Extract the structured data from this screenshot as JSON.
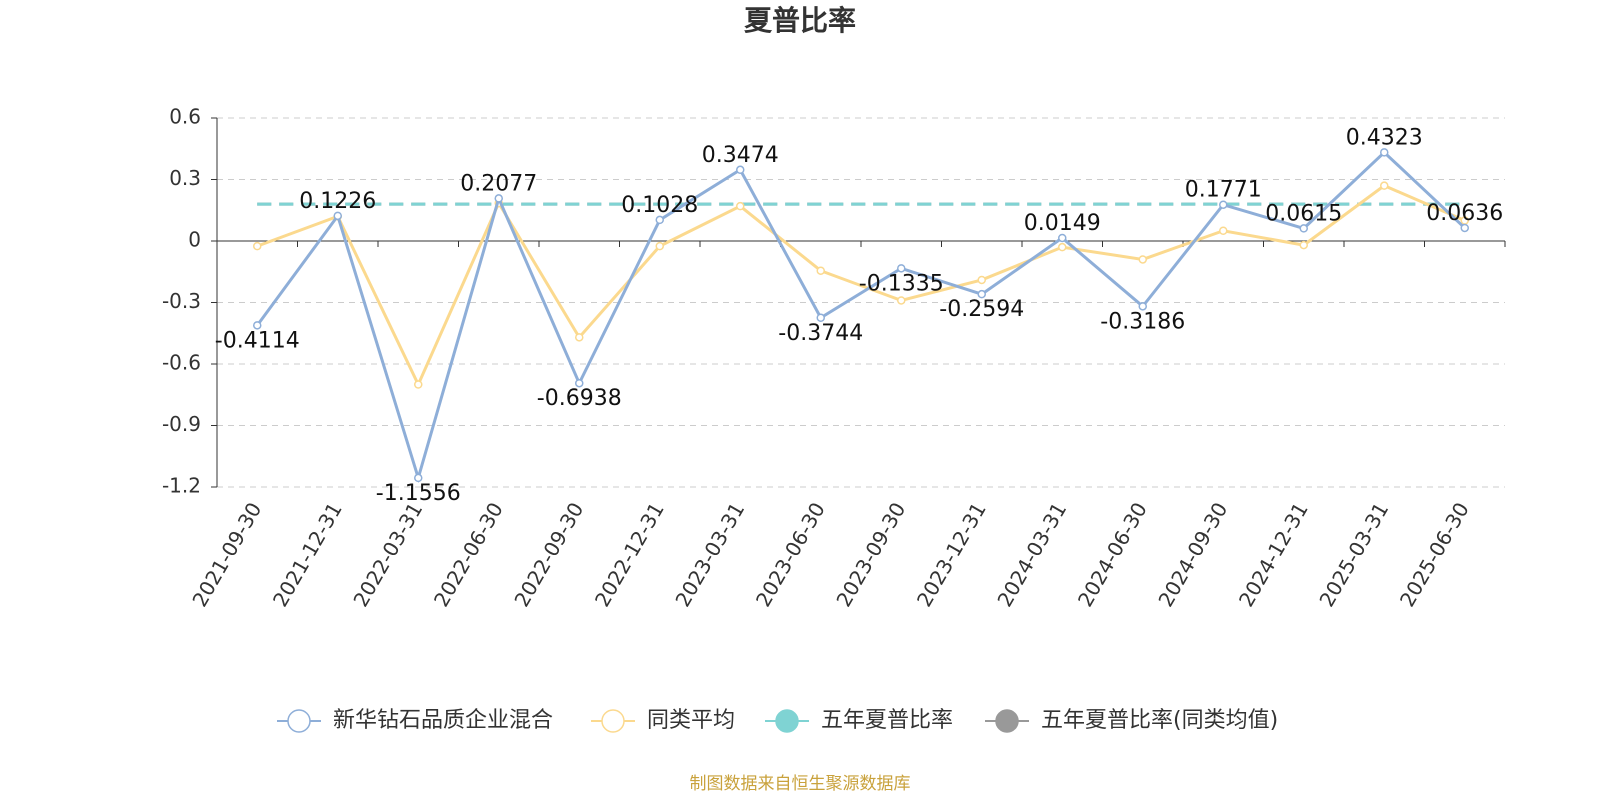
{
  "chart_data": {
    "type": "line",
    "title": "夏普比率",
    "categories": [
      "2021-09-30",
      "2021-12-31",
      "2022-03-31",
      "2022-06-30",
      "2022-09-30",
      "2022-12-31",
      "2023-03-31",
      "2023-06-30",
      "2023-09-30",
      "2023-12-31",
      "2024-03-31",
      "2024-06-30",
      "2024-09-30",
      "2024-12-31",
      "2025-03-31",
      "2025-06-30"
    ],
    "series": [
      {
        "name": "新华钻石品质企业混合",
        "color": "#8eaed8",
        "values": [
          -0.4114,
          0.1226,
          -1.1556,
          0.2077,
          -0.6938,
          0.1028,
          0.3474,
          -0.3744,
          -0.1335,
          -0.2594,
          0.0149,
          -0.3186,
          0.1771,
          0.0615,
          0.4323,
          0.0636
        ],
        "labels": true
      },
      {
        "name": "同类平均",
        "color": "#fbd98e",
        "values": [
          -0.025,
          0.12,
          -0.7,
          0.185,
          -0.47,
          -0.025,
          0.17,
          -0.145,
          -0.29,
          -0.19,
          -0.03,
          -0.09,
          0.05,
          -0.02,
          0.27,
          0.1
        ]
      },
      {
        "name": "五年夏普比率",
        "color": "#7fd3d3",
        "style": "dashed",
        "values": [
          0.18,
          0.18,
          0.18,
          0.18,
          0.18,
          0.18,
          0.18,
          0.18,
          0.18,
          0.18,
          0.18,
          0.18,
          0.18,
          0.18,
          0.18,
          0.18
        ]
      },
      {
        "name": "五年夏普比率(同类均值)",
        "color": "#999999",
        "style": "dashed",
        "values": [
          0.18,
          0.18,
          0.18,
          0.18,
          0.18,
          0.18,
          0.18,
          0.18,
          0.18,
          0.18,
          0.18,
          0.18,
          0.18,
          0.18,
          0.18,
          0.18
        ]
      }
    ],
    "ylim": [
      -1.2,
      0.6
    ],
    "yticks": [
      0.6,
      0.3,
      0,
      -0.3,
      -0.6,
      -0.9,
      -1.2
    ],
    "grid": true,
    "source": "制图数据来自恒生聚源数据库"
  }
}
